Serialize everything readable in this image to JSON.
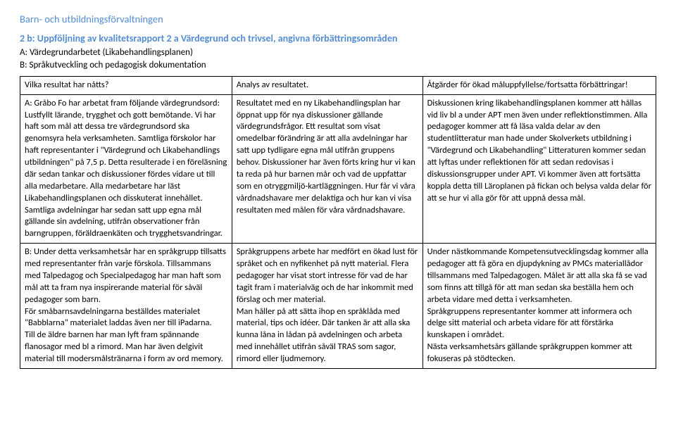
{
  "header": {
    "department": "Barn- och utbildningsförvaltningen"
  },
  "section": {
    "title": "2 b: Uppföljning av kvalitetsrapport 2 a Värdegrund och trivsel, angivna förbättringsområden",
    "lineA": "A: Värdegrundarbetet (Likabehandlingsplanen)",
    "lineB": "B: Språkutveckling och pedagogisk dokumentation"
  },
  "table": {
    "headers": {
      "c1": "Vilka resultat har nåtts?",
      "c2": "Analys av resultatet.",
      "c3": "Åtgärder för ökad måluppfyllelse/fortsatta förbättringar!"
    },
    "row1": {
      "c1": "A: Gråbo Fo har arbetat fram följande värdegrundsord: Lustfyllt lärande, trygghet och gott bemötande. Vi har haft som mål att dessa tre värdegrundsord ska genomsyra hela verksamheten. Samtliga förskolor har haft representanter i \"Värdegrund och Likabehandlings utbildningen\" på 7,5 p. Detta resulterade i en föreläsning där sedan tankar och diskussioner fördes vidare ut till alla medarbetare. Alla medarbetare har läst Likabehandlingsplanen och disskuterat innehållet. Samtliga avdelningar har sedan satt upp egna mål gällande sin avdelning, utifrån observationer från barngruppen, föräldraenkäten och trygghetsvandringar.",
      "c2": "Resultatet med en ny Likabehandlingsplan har öppnat upp för nya diskussioner gällande värdegrundsfrågor. Ett resultat som visat omedelbar förändring är att alla avdelningar har satt upp tydligare egna mål utifrån gruppens behov. Diskussioner har även förts kring hur vi kan ta reda på hur barnen mår och vad de uppfattar som en otryggmiljö-kartläggningen. Hur får vi våra vårdnadshavare mer delaktiga och hur kan vi visa resultaten med målen för våra vårdnadshavare.",
      "c3": "Diskussionen kring likabehandlingsplanen kommer att hållas vid liv bl a under APT men även under reflektionstimmen. Alla pedagoger kommer att få läsa valda delar av den studentlitteratur man hade under Skolverkets utbildning i \"Värdegrund och Likabehandling\" Litteraturen kommer sedan att lyftas under reflektionen för att sedan redovisas i diskussionsgrupper under APT. Vi kommer även att fortsätta koppla detta till Läroplanen på fickan och belysa valda delar för att se hur vi alla gör för att uppnå dessa mål."
    },
    "row2": {
      "c1": "B: Under detta verksamhetsår har en språkgrupp tillsatts med representanter från varje förskola. Tillsammans med Talpedagog och Specialpedagog har man haft som mål att ta fram nya inspirerande material för såväl pedagoger som barn.\nFör småbarnsavdelningarna beställdes materialet \"Babblarna\" materialet laddas även ner till iPadarna.\nTill de äldre barnen har man lyft fram spännande flanosagor med bl a rimord. Man har även delgivit material till modersmålstränarna i form av ord memory.",
      "c2": "Språkgruppens arbete har medfört en ökad lust för språket och en nyfikenhet på nytt material. Flera pedagoger har visat stort intresse för vad de har tagit fram i materialväg och de har inkommit med förslag och mer material.\nMan håller på att sätta ihop en språklåda med material, tips och idéer. Där tanken är att alla ska kunna låna in lådan på avdelningen och arbeta med innehållet utifrån såväl TRAS som sagor, rimord eller ljudmemory.",
      "c3": "Under nästkommande Kompetensutvecklingsdag kommer alla pedagoger att få göra en djupdykning av PMCs materiallådor tillsammans med Talpedagogen. Målet är att alla ska få se vad som finns att tillgå för att man sedan ska beställa hem och arbeta vidare med detta i verksamheten.\nSpråkgruppens representanter kommer att informera och delge sitt material och arbeta vidare för att förstärka kunskapen i området.\nNästa verksamhetsårs gällande språkgruppen kommer att fokuseras på stödtecken."
    }
  }
}
